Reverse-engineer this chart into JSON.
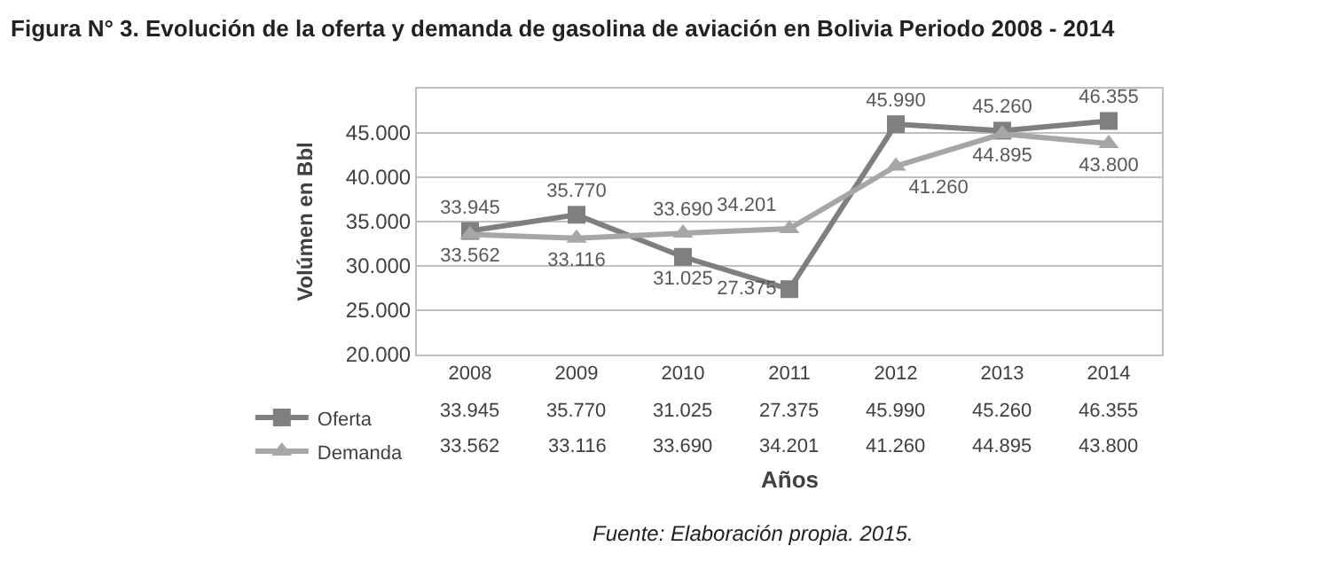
{
  "chart_data": {
    "type": "line",
    "title": "Figura N° 3. Evolución de la oferta y demanda de gasolina de aviación en Bolivia Periodo 2008 - 2014",
    "categories": [
      "2008",
      "2009",
      "2010",
      "2011",
      "2012",
      "2013",
      "2014"
    ],
    "series": [
      {
        "name": "Oferta",
        "color": "#7f7f7f",
        "marker": "square",
        "values": [
          33945,
          35770,
          31025,
          27375,
          45990,
          45260,
          46355
        ],
        "value_labels": [
          "33.945",
          "35.770",
          "31.025",
          "27.375",
          "45.990",
          "45.260",
          "46.355"
        ]
      },
      {
        "name": "Demanda",
        "color": "#a6a6a6",
        "marker": "triangle",
        "values": [
          33562,
          33116,
          33690,
          34201,
          41260,
          44895,
          43800
        ],
        "value_labels": [
          "33.562",
          "33.116",
          "33.690",
          "34.201",
          "41.260",
          "44.895",
          "43.800"
        ]
      }
    ],
    "xlabel": "Años",
    "ylabel": "Volúmen en Bbl",
    "ylim": [
      20000,
      50000
    ],
    "yticks": [
      {
        "value": 20000,
        "label": "20.000"
      },
      {
        "value": 25000,
        "label": "25.000"
      },
      {
        "value": 30000,
        "label": "30.000"
      },
      {
        "value": 35000,
        "label": "35.000"
      },
      {
        "value": 40000,
        "label": "40.000"
      },
      {
        "value": 45000,
        "label": "45.000"
      }
    ],
    "grid": "y",
    "legend": "bottom left",
    "annotations": [
      "Fuente: Elaboración propia. 2015."
    ]
  }
}
